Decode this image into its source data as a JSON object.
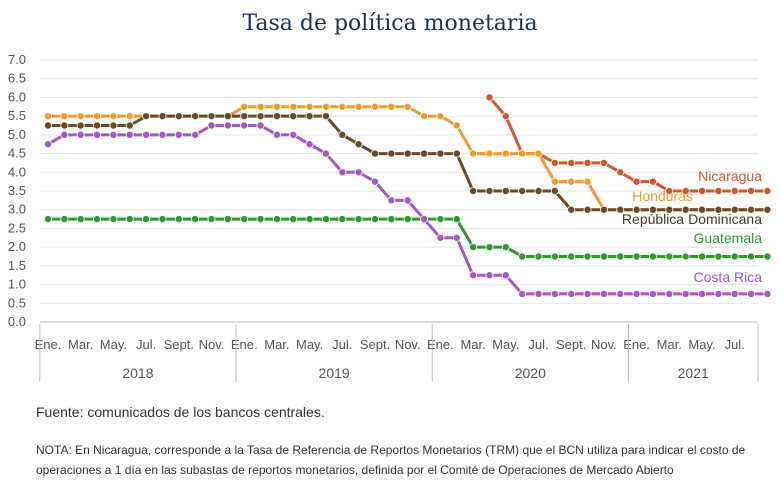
{
  "chart_data": {
    "type": "line",
    "title": "Tasa de política monetaria",
    "ylim": [
      0,
      7
    ],
    "yticks": [
      "0.0",
      "0.5",
      "1.0",
      "1.5",
      "2.0",
      "2.5",
      "3.0",
      "3.5",
      "4.0",
      "4.5",
      "5.0",
      "5.5",
      "6.0",
      "6.5",
      "7.0"
    ],
    "grid": "horizontal",
    "x": [
      "2018-01",
      "2018-02",
      "2018-03",
      "2018-04",
      "2018-05",
      "2018-06",
      "2018-07",
      "2018-08",
      "2018-09",
      "2018-10",
      "2018-11",
      "2018-12",
      "2019-01",
      "2019-02",
      "2019-03",
      "2019-04",
      "2019-05",
      "2019-06",
      "2019-07",
      "2019-08",
      "2019-09",
      "2019-10",
      "2019-11",
      "2019-12",
      "2020-01",
      "2020-02",
      "2020-03",
      "2020-04",
      "2020-05",
      "2020-06",
      "2020-07",
      "2020-08",
      "2020-09",
      "2020-10",
      "2020-11",
      "2020-12",
      "2021-01",
      "2021-02",
      "2021-03",
      "2021-04",
      "2021-05",
      "2021-06",
      "2021-07",
      "2021-08",
      "2021-09"
    ],
    "month_tick_labels": [
      "Ene.",
      "Mar.",
      "May.",
      "Jul.",
      "Sept.",
      "Nov.",
      "Ene.",
      "Mar.",
      "May.",
      "Jul.",
      "Sept.",
      "Nov.",
      "Ene.",
      "Mar.",
      "May.",
      "Jul.",
      "Sept.",
      "Nov.",
      "Ene.",
      "Mar.",
      "May.",
      "Jul."
    ],
    "year_labels": [
      "2018",
      "2019",
      "2020",
      "2021"
    ],
    "series": [
      {
        "name": "Nicaragua",
        "color": "#d4572a",
        "values": [
          null,
          null,
          null,
          null,
          null,
          null,
          null,
          null,
          null,
          null,
          null,
          null,
          null,
          null,
          null,
          null,
          null,
          null,
          null,
          null,
          null,
          null,
          null,
          null,
          null,
          null,
          null,
          6.0,
          5.5,
          4.5,
          4.5,
          4.25,
          4.25,
          4.25,
          4.25,
          4.0,
          3.75,
          3.75,
          3.5,
          3.5,
          3.5,
          3.5,
          3.5,
          3.5,
          3.5
        ]
      },
      {
        "name": "Honduras",
        "color": "#f39a2c",
        "values": [
          5.5,
          5.5,
          5.5,
          5.5,
          5.5,
          5.5,
          5.5,
          5.5,
          5.5,
          5.5,
          5.5,
          5.5,
          5.75,
          5.75,
          5.75,
          5.75,
          5.75,
          5.75,
          5.75,
          5.75,
          5.75,
          5.75,
          5.75,
          5.5,
          5.5,
          5.25,
          4.5,
          4.5,
          4.5,
          4.5,
          4.5,
          3.75,
          3.75,
          3.75,
          3.0,
          3.0,
          3.0,
          3.0,
          3.0,
          3.0,
          3.0,
          3.0,
          3.0,
          3.0,
          3.0
        ]
      },
      {
        "name": "República Dominicana",
        "color": "#6b4a26",
        "values": [
          5.25,
          5.25,
          5.25,
          5.25,
          5.25,
          5.25,
          5.5,
          5.5,
          5.5,
          5.5,
          5.5,
          5.5,
          5.5,
          5.5,
          5.5,
          5.5,
          5.5,
          5.5,
          5.0,
          4.75,
          4.5,
          4.5,
          4.5,
          4.5,
          4.5,
          4.5,
          3.5,
          3.5,
          3.5,
          3.5,
          3.5,
          3.5,
          3.0,
          3.0,
          3.0,
          3.0,
          3.0,
          3.0,
          3.0,
          3.0,
          3.0,
          3.0,
          3.0,
          3.0,
          3.0
        ]
      },
      {
        "name": "Guatemala",
        "color": "#2e9a2e",
        "values": [
          2.75,
          2.75,
          2.75,
          2.75,
          2.75,
          2.75,
          2.75,
          2.75,
          2.75,
          2.75,
          2.75,
          2.75,
          2.75,
          2.75,
          2.75,
          2.75,
          2.75,
          2.75,
          2.75,
          2.75,
          2.75,
          2.75,
          2.75,
          2.75,
          2.75,
          2.75,
          2.0,
          2.0,
          2.0,
          1.75,
          1.75,
          1.75,
          1.75,
          1.75,
          1.75,
          1.75,
          1.75,
          1.75,
          1.75,
          1.75,
          1.75,
          1.75,
          1.75,
          1.75,
          1.75
        ]
      },
      {
        "name": "Costa Rica",
        "color": "#a557c9",
        "values": [
          4.75,
          5.0,
          5.0,
          5.0,
          5.0,
          5.0,
          5.0,
          5.0,
          5.0,
          5.0,
          5.25,
          5.25,
          5.25,
          5.25,
          5.0,
          5.0,
          4.75,
          4.5,
          4.0,
          4.0,
          3.75,
          3.25,
          3.25,
          2.75,
          2.25,
          2.25,
          1.25,
          1.25,
          1.25,
          0.75,
          0.75,
          0.75,
          0.75,
          0.75,
          0.75,
          0.75,
          0.75,
          0.75,
          0.75,
          0.75,
          0.75,
          0.75,
          0.75,
          0.75,
          0.75
        ]
      }
    ]
  },
  "footer": {
    "source": "Fuente: comunicados de los bancos centrales.",
    "note": "NOTA: En Nicaragua, corresponde a la Tasa de Referencia de Reportos Monetarios (TRM) que el BCN utiliza para indicar el costo de operaciones a 1 día en las subastas de reportos monetarios, definida por el Comité de Operaciones de Mercado Abierto"
  }
}
